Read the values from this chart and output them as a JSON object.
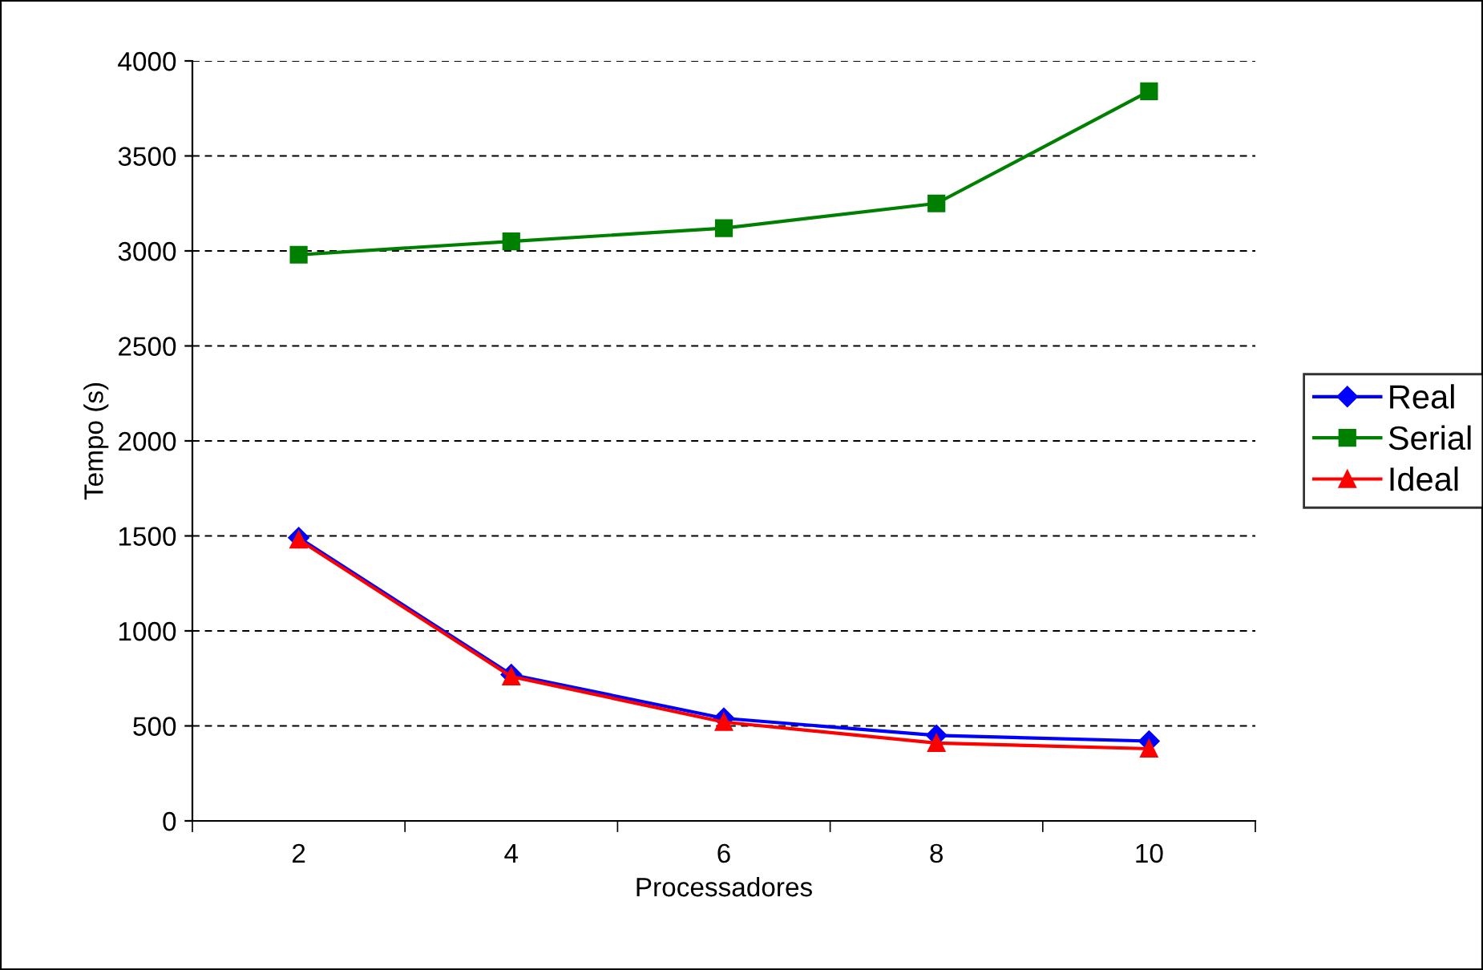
{
  "chart_data": {
    "type": "line",
    "xlabel": "Processadores",
    "ylabel": "Tempo (s)",
    "categories": [
      "2",
      "4",
      "6",
      "8",
      "10"
    ],
    "series": [
      {
        "name": "Real",
        "color": "#0000ff",
        "marker": "diamond",
        "values": [
          1490,
          770,
          540,
          450,
          420
        ]
      },
      {
        "name": "Serial",
        "color": "#008000",
        "marker": "square",
        "values": [
          2980,
          3050,
          3120,
          3250,
          3840
        ]
      },
      {
        "name": "Ideal",
        "color": "#ff0000",
        "marker": "triangle",
        "values": [
          1480,
          760,
          520,
          410,
          380
        ]
      }
    ],
    "ylim": [
      0,
      4000
    ],
    "yticks": [
      0,
      500,
      1000,
      1500,
      2000,
      2500,
      3000,
      3500,
      4000
    ],
    "grid": "y",
    "legend": "right",
    "line_style": "solid"
  }
}
